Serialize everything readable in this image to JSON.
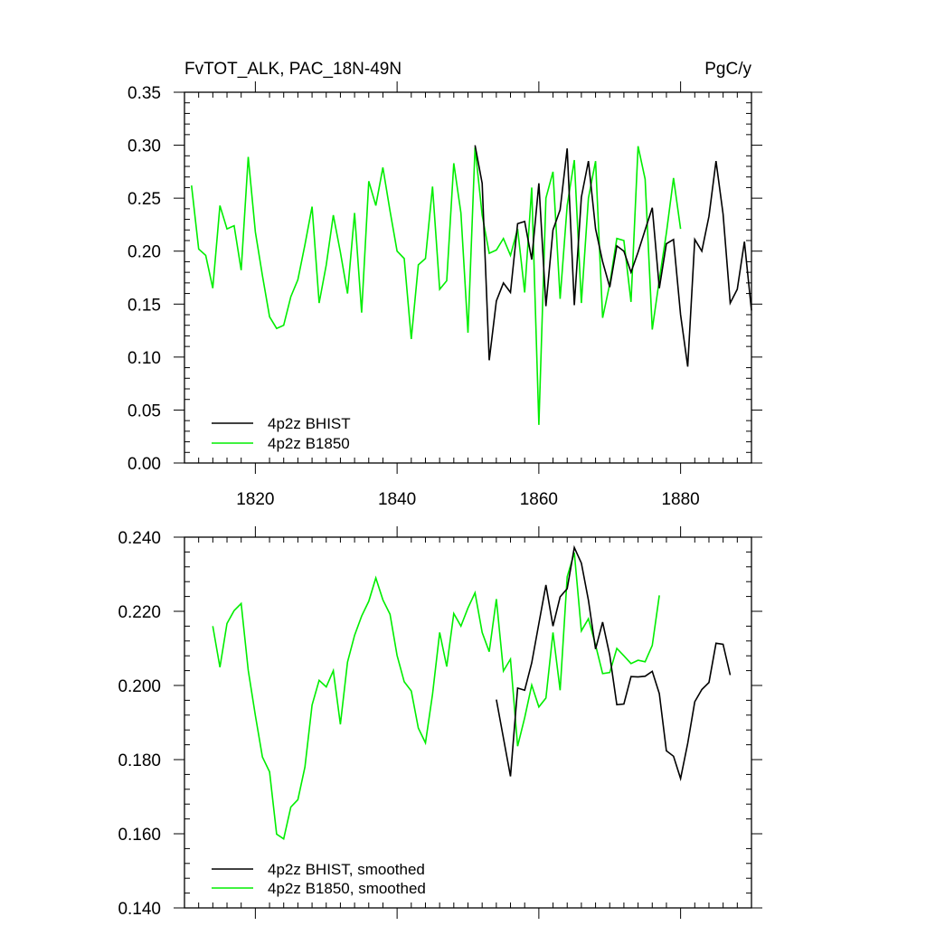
{
  "figure": {
    "title_left": "FvTOT_ALK, PAC_18N-49N",
    "title_right": "PgC/y"
  },
  "colors": {
    "bhist": "#000000",
    "b1850": "#00ee00"
  },
  "chart_data": [
    {
      "type": "line",
      "title": "FvTOT_ALK, PAC_18N-49N",
      "units": "PgC/y",
      "xlim": [
        1810,
        1890
      ],
      "ylim": [
        0.0,
        0.35
      ],
      "xticks": [
        1820,
        1840,
        1860,
        1880
      ],
      "xtick_labels": [
        "1820",
        "1840",
        "1860",
        "1880"
      ],
      "yticks": [
        0.0,
        0.05,
        0.1,
        0.15,
        0.2,
        0.25,
        0.3,
        0.35
      ],
      "ytick_labels": [
        "0.00",
        "0.05",
        "0.10",
        "0.15",
        "0.20",
        "0.25",
        "0.30",
        "0.35"
      ],
      "legend_position": "bottom-left",
      "series": [
        {
          "name": "4p2z BHIST",
          "color": "#000000",
          "x": [
            1851,
            1852,
            1853,
            1854,
            1855,
            1856,
            1857,
            1858,
            1859,
            1860,
            1861,
            1862,
            1863,
            1864,
            1865,
            1866,
            1867,
            1868,
            1869,
            1870,
            1871,
            1872,
            1873,
            1874,
            1875,
            1876,
            1877,
            1878,
            1879,
            1880,
            1881,
            1882,
            1883,
            1884,
            1885,
            1886,
            1887,
            1888,
            1889,
            1890
          ],
          "y": [
            0.3,
            0.264,
            0.097,
            0.153,
            0.17,
            0.161,
            0.226,
            0.228,
            0.192,
            0.264,
            0.148,
            0.22,
            0.239,
            0.297,
            0.149,
            0.251,
            0.285,
            0.221,
            0.19,
            0.166,
            0.205,
            0.2,
            0.18,
            0.199,
            0.22,
            0.241,
            0.165,
            0.207,
            0.211,
            0.14,
            0.091,
            0.211,
            0.2,
            0.233,
            0.285,
            0.235,
            0.151,
            0.164,
            0.209,
            0.144
          ]
        },
        {
          "name": "4p2z B1850",
          "color": "#00ee00",
          "x": [
            1811,
            1812,
            1813,
            1814,
            1815,
            1816,
            1817,
            1818,
            1819,
            1820,
            1821,
            1822,
            1823,
            1824,
            1825,
            1826,
            1827,
            1828,
            1829,
            1830,
            1831,
            1832,
            1833,
            1834,
            1835,
            1836,
            1837,
            1838,
            1839,
            1840,
            1841,
            1842,
            1843,
            1844,
            1845,
            1846,
            1847,
            1848,
            1849,
            1850,
            1851,
            1852,
            1853,
            1854,
            1855,
            1856,
            1857,
            1858,
            1859,
            1860,
            1861,
            1862,
            1863,
            1864,
            1865,
            1866,
            1867,
            1868,
            1869,
            1870,
            1871,
            1872,
            1873,
            1874,
            1875,
            1876,
            1877,
            1878,
            1879,
            1880
          ],
          "y": [
            0.262,
            0.202,
            0.196,
            0.165,
            0.243,
            0.221,
            0.224,
            0.182,
            0.289,
            0.218,
            0.177,
            0.138,
            0.127,
            0.13,
            0.157,
            0.173,
            0.206,
            0.242,
            0.151,
            0.187,
            0.234,
            0.199,
            0.16,
            0.236,
            0.142,
            0.266,
            0.243,
            0.279,
            0.238,
            0.2,
            0.193,
            0.117,
            0.187,
            0.193,
            0.261,
            0.164,
            0.172,
            0.283,
            0.236,
            0.123,
            0.298,
            0.234,
            0.198,
            0.201,
            0.212,
            0.196,
            0.221,
            0.161,
            0.26,
            0.036,
            0.25,
            0.275,
            0.155,
            0.243,
            0.286,
            0.151,
            0.25,
            0.285,
            0.137,
            0.169,
            0.212,
            0.21,
            0.152,
            0.299,
            0.268,
            0.126,
            0.173,
            0.217,
            0.269,
            0.221
          ]
        }
      ]
    },
    {
      "type": "line",
      "xlim": [
        1810,
        1890
      ],
      "ylim": [
        0.14,
        0.24
      ],
      "yticks": [
        0.14,
        0.16,
        0.18,
        0.2,
        0.22,
        0.24
      ],
      "ytick_labels": [
        "0.140",
        "0.160",
        "0.180",
        "0.200",
        "0.220",
        "0.240"
      ],
      "xticks": [
        1820,
        1840,
        1860,
        1880
      ],
      "legend_position": "bottom-left",
      "series": [
        {
          "name": "4p2z BHIST, smoothed",
          "color": "#000000",
          "x": [
            1854,
            1856,
            1857,
            1858,
            1859,
            1860,
            1861,
            1862,
            1863,
            1864,
            1865,
            1866,
            1867,
            1868,
            1869,
            1870,
            1871,
            1872,
            1873,
            1874,
            1875,
            1876,
            1877,
            1878,
            1879,
            1880,
            1881,
            1882,
            1883,
            1884,
            1885,
            1886,
            1887
          ],
          "y": [
            0.1962,
            0.1755,
            0.1993,
            0.1987,
            0.2061,
            0.2167,
            0.2271,
            0.216,
            0.2239,
            0.2261,
            0.2372,
            0.233,
            0.223,
            0.2098,
            0.2171,
            0.2081,
            0.1948,
            0.195,
            0.2024,
            0.2023,
            0.2025,
            0.2038,
            0.1978,
            0.1824,
            0.1809,
            0.1749,
            0.1844,
            0.1956,
            0.1989,
            0.2008,
            0.2114,
            0.2111,
            0.2028
          ]
        },
        {
          "name": "4p2z B1850, smoothed",
          "color": "#00ee00",
          "x": [
            1814,
            1815,
            1816,
            1817,
            1818,
            1819,
            1820,
            1821,
            1822,
            1823,
            1824,
            1825,
            1826,
            1827,
            1828,
            1829,
            1830,
            1831,
            1832,
            1833,
            1834,
            1835,
            1836,
            1837,
            1838,
            1839,
            1840,
            1841,
            1842,
            1843,
            1844,
            1845,
            1846,
            1847,
            1848,
            1849,
            1850,
            1851,
            1852,
            1853,
            1854,
            1855,
            1856,
            1857,
            1858,
            1859,
            1860,
            1861,
            1862,
            1863,
            1864,
            1865,
            1866,
            1867,
            1868,
            1869,
            1870,
            1871,
            1872,
            1873,
            1874,
            1875,
            1876,
            1877
          ],
          "y": [
            0.216,
            0.2049,
            0.2167,
            0.2202,
            0.2221,
            0.2041,
            0.1919,
            0.1807,
            0.1767,
            0.1599,
            0.1586,
            0.1672,
            0.1692,
            0.178,
            0.1947,
            0.2014,
            0.1996,
            0.204,
            0.1895,
            0.2063,
            0.2135,
            0.2187,
            0.2227,
            0.229,
            0.2231,
            0.2192,
            0.2081,
            0.201,
            0.1985,
            0.1885,
            0.1845,
            0.1976,
            0.2143,
            0.2051,
            0.2194,
            0.216,
            0.2209,
            0.225,
            0.2143,
            0.2091,
            0.2233,
            0.2039,
            0.2071,
            0.1836,
            0.1913,
            0.2001,
            0.1942,
            0.1966,
            0.2143,
            0.1987,
            0.2293,
            0.2358,
            0.2147,
            0.218,
            0.2109,
            0.2032,
            0.2035,
            0.21,
            0.208,
            0.2059,
            0.2068,
            0.2064,
            0.2108,
            0.2243
          ]
        }
      ]
    }
  ]
}
